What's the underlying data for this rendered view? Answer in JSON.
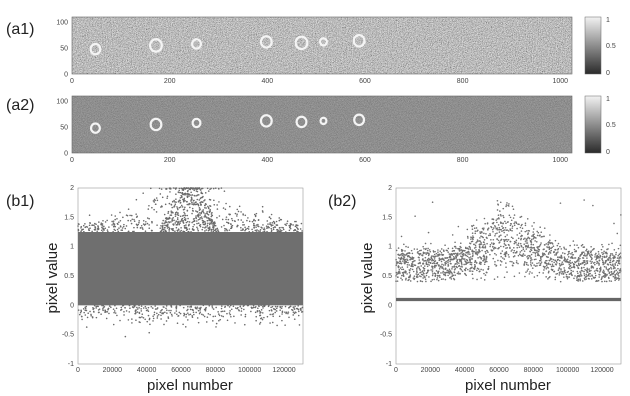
{
  "panels": {
    "a1": "(a1)",
    "a2": "(a2)",
    "b1": "(b1)",
    "b2": "(b2)"
  },
  "colorbar": {
    "ticks": [
      "1",
      "0.5",
      "0"
    ]
  },
  "chart_data": [
    {
      "id": "a1",
      "type": "heatmap",
      "xticks": [
        "0",
        "200",
        "400",
        "600",
        "800",
        "1000"
      ],
      "yticks": [
        "0",
        "50",
        "100"
      ],
      "xlim": [
        0,
        1024
      ],
      "ylim": [
        0,
        110
      ],
      "colorbar_range": [
        0,
        1
      ],
      "rings": [
        {
          "x": 48,
          "y": 48,
          "r": 10
        },
        {
          "x": 172,
          "y": 55,
          "r": 12
        },
        {
          "x": 255,
          "y": 58,
          "r": 9
        },
        {
          "x": 398,
          "y": 62,
          "r": 11
        },
        {
          "x": 470,
          "y": 60,
          "r": 12
        },
        {
          "x": 515,
          "y": 62,
          "r": 7
        },
        {
          "x": 588,
          "y": 64,
          "r": 11
        }
      ]
    },
    {
      "id": "a2",
      "type": "heatmap",
      "xticks": [
        "0",
        "200",
        "400",
        "600",
        "800",
        "1000"
      ],
      "yticks": [
        "0",
        "50",
        "100"
      ],
      "xlim": [
        0,
        1024
      ],
      "ylim": [
        0,
        110
      ],
      "colorbar_range": [
        0,
        1
      ],
      "rings": [
        {
          "x": 48,
          "y": 48,
          "r": 9
        },
        {
          "x": 172,
          "y": 55,
          "r": 11
        },
        {
          "x": 255,
          "y": 58,
          "r": 8
        },
        {
          "x": 398,
          "y": 62,
          "r": 11
        },
        {
          "x": 470,
          "y": 60,
          "r": 10
        },
        {
          "x": 515,
          "y": 62,
          "r": 6
        },
        {
          "x": 588,
          "y": 64,
          "r": 10
        }
      ]
    },
    {
      "id": "b1",
      "type": "scatter",
      "xlabel": "pixel number",
      "ylabel": "pixel value",
      "xticks": [
        "0",
        "20000",
        "40000",
        "60000",
        "80000",
        "100000",
        "120000"
      ],
      "yticks": [
        "2",
        "1.5",
        "1",
        "0.5",
        "0",
        "-0.5",
        "-1"
      ],
      "xlim": [
        0,
        131072
      ],
      "ylim": [
        -1,
        2
      ],
      "dense_band": [
        0,
        1.25
      ],
      "bump": {
        "center": 65000,
        "width": 22000,
        "peak": 2.0
      }
    },
    {
      "id": "b2",
      "type": "scatter",
      "xlabel": "pixel number",
      "ylabel": "pixel value",
      "xticks": [
        "0",
        "20000",
        "40000",
        "60000",
        "80000",
        "100000",
        "120000"
      ],
      "yticks": [
        "2",
        "1.5",
        "1",
        "0.5",
        "0",
        "-0.5",
        "-1"
      ],
      "xlim": [
        0,
        131072
      ],
      "ylim": [
        -1,
        2
      ],
      "floor_line": 0.1,
      "background_band": [
        0.4,
        0.9
      ],
      "bump": {
        "center": 65000,
        "width": 22000,
        "peak": 1.65
      }
    }
  ]
}
